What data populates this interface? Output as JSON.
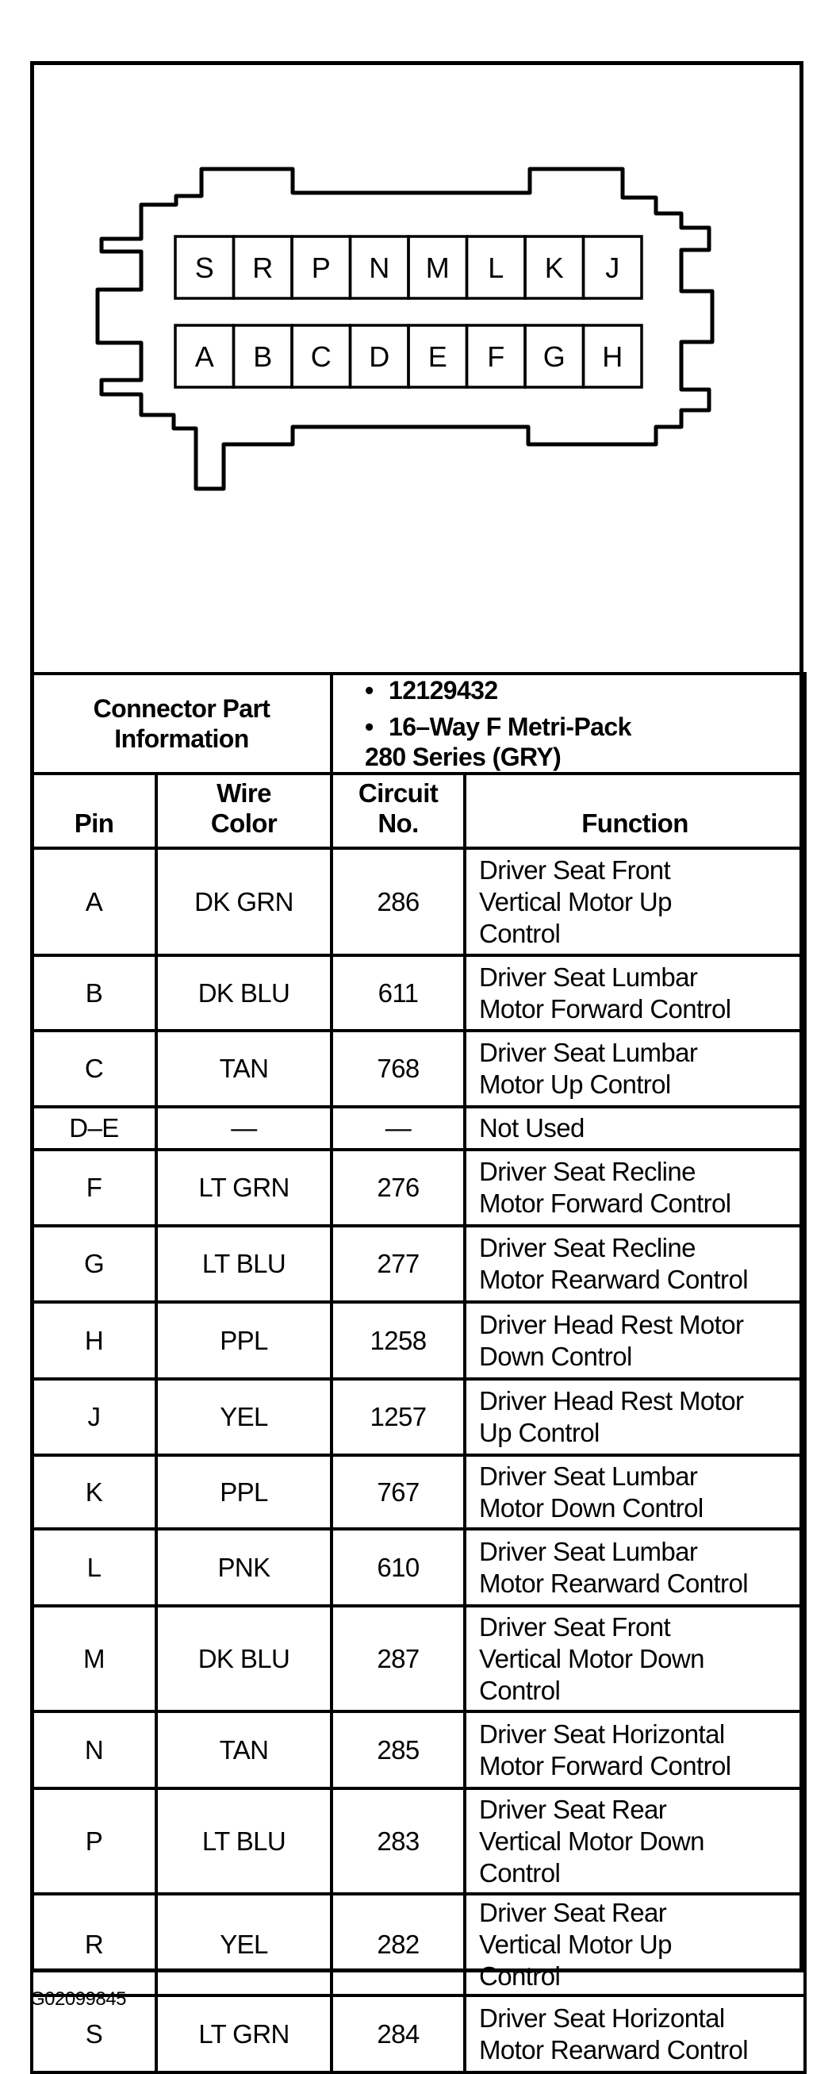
{
  "connector": {
    "top_row_pins": [
      "S",
      "R",
      "P",
      "N",
      "M",
      "L",
      "K",
      "J"
    ],
    "bottom_row_pins": [
      "A",
      "B",
      "C",
      "D",
      "E",
      "F",
      "G",
      "H"
    ]
  },
  "part_info": {
    "label_line1": "Connector Part",
    "label_line2": "Information",
    "bullet": "•",
    "item1": "12129432",
    "item2_line1": "16–Way F Metri-Pack",
    "item2_line2": "280 Series (GRY)"
  },
  "headers": {
    "pin": "Pin",
    "wire_color_line1": "Wire",
    "wire_color_line2": "Color",
    "circuit_line1": "Circuit",
    "circuit_line2": "No.",
    "function": "Function"
  },
  "rows": [
    {
      "pin": "A",
      "color": "DK GRN",
      "circuit": "286",
      "function": [
        "Driver Seat Front",
        "Vertical Motor Up",
        "Control"
      ]
    },
    {
      "pin": "B",
      "color": "DK BLU",
      "circuit": "611",
      "function": [
        "Driver Seat Lumbar",
        "Motor Forward Control"
      ]
    },
    {
      "pin": "C",
      "color": "TAN",
      "circuit": "768",
      "function": [
        "Driver Seat Lumbar",
        "Motor Up Control"
      ]
    },
    {
      "pin": "D–E",
      "color": "—",
      "circuit": "—",
      "function": [
        "Not Used"
      ]
    },
    {
      "pin": "F",
      "color": "LT GRN",
      "circuit": "276",
      "function": [
        "Driver Seat Recline",
        "Motor Forward Control"
      ]
    },
    {
      "pin": "G",
      "color": "LT BLU",
      "circuit": "277",
      "function": [
        "Driver Seat Recline",
        "Motor Rearward Control"
      ]
    },
    {
      "pin": "H",
      "color": "PPL",
      "circuit": "1258",
      "function": [
        "Driver Head Rest Motor",
        "Down Control"
      ]
    },
    {
      "pin": "J",
      "color": "YEL",
      "circuit": "1257",
      "function": [
        "Driver Head Rest Motor",
        "Up Control"
      ]
    },
    {
      "pin": "K",
      "color": "PPL",
      "circuit": "767",
      "function": [
        "Driver Seat Lumbar",
        "Motor Down Control"
      ]
    },
    {
      "pin": "L",
      "color": "PNK",
      "circuit": "610",
      "function": [
        "Driver Seat Lumbar",
        "Motor Rearward Control"
      ]
    },
    {
      "pin": "M",
      "color": "DK BLU",
      "circuit": "287",
      "function": [
        "Driver Seat Front",
        "Vertical Motor Down",
        "Control"
      ]
    },
    {
      "pin": "N",
      "color": "TAN",
      "circuit": "285",
      "function": [
        "Driver Seat Horizontal",
        "Motor Forward Control"
      ]
    },
    {
      "pin": "P",
      "color": "LT BLU",
      "circuit": "283",
      "function": [
        "Driver Seat Rear",
        "Vertical Motor Down",
        "Control"
      ]
    },
    {
      "pin": "R",
      "color": "YEL",
      "circuit": "282",
      "function": [
        "Driver Seat Rear",
        "Vertical Motor Up",
        "Control"
      ]
    },
    {
      "pin": "S",
      "color": "LT GRN",
      "circuit": "284",
      "function": [
        "Driver Seat Horizontal",
        "Motor Rearward Control"
      ]
    }
  ],
  "figure_code": "G02099845"
}
